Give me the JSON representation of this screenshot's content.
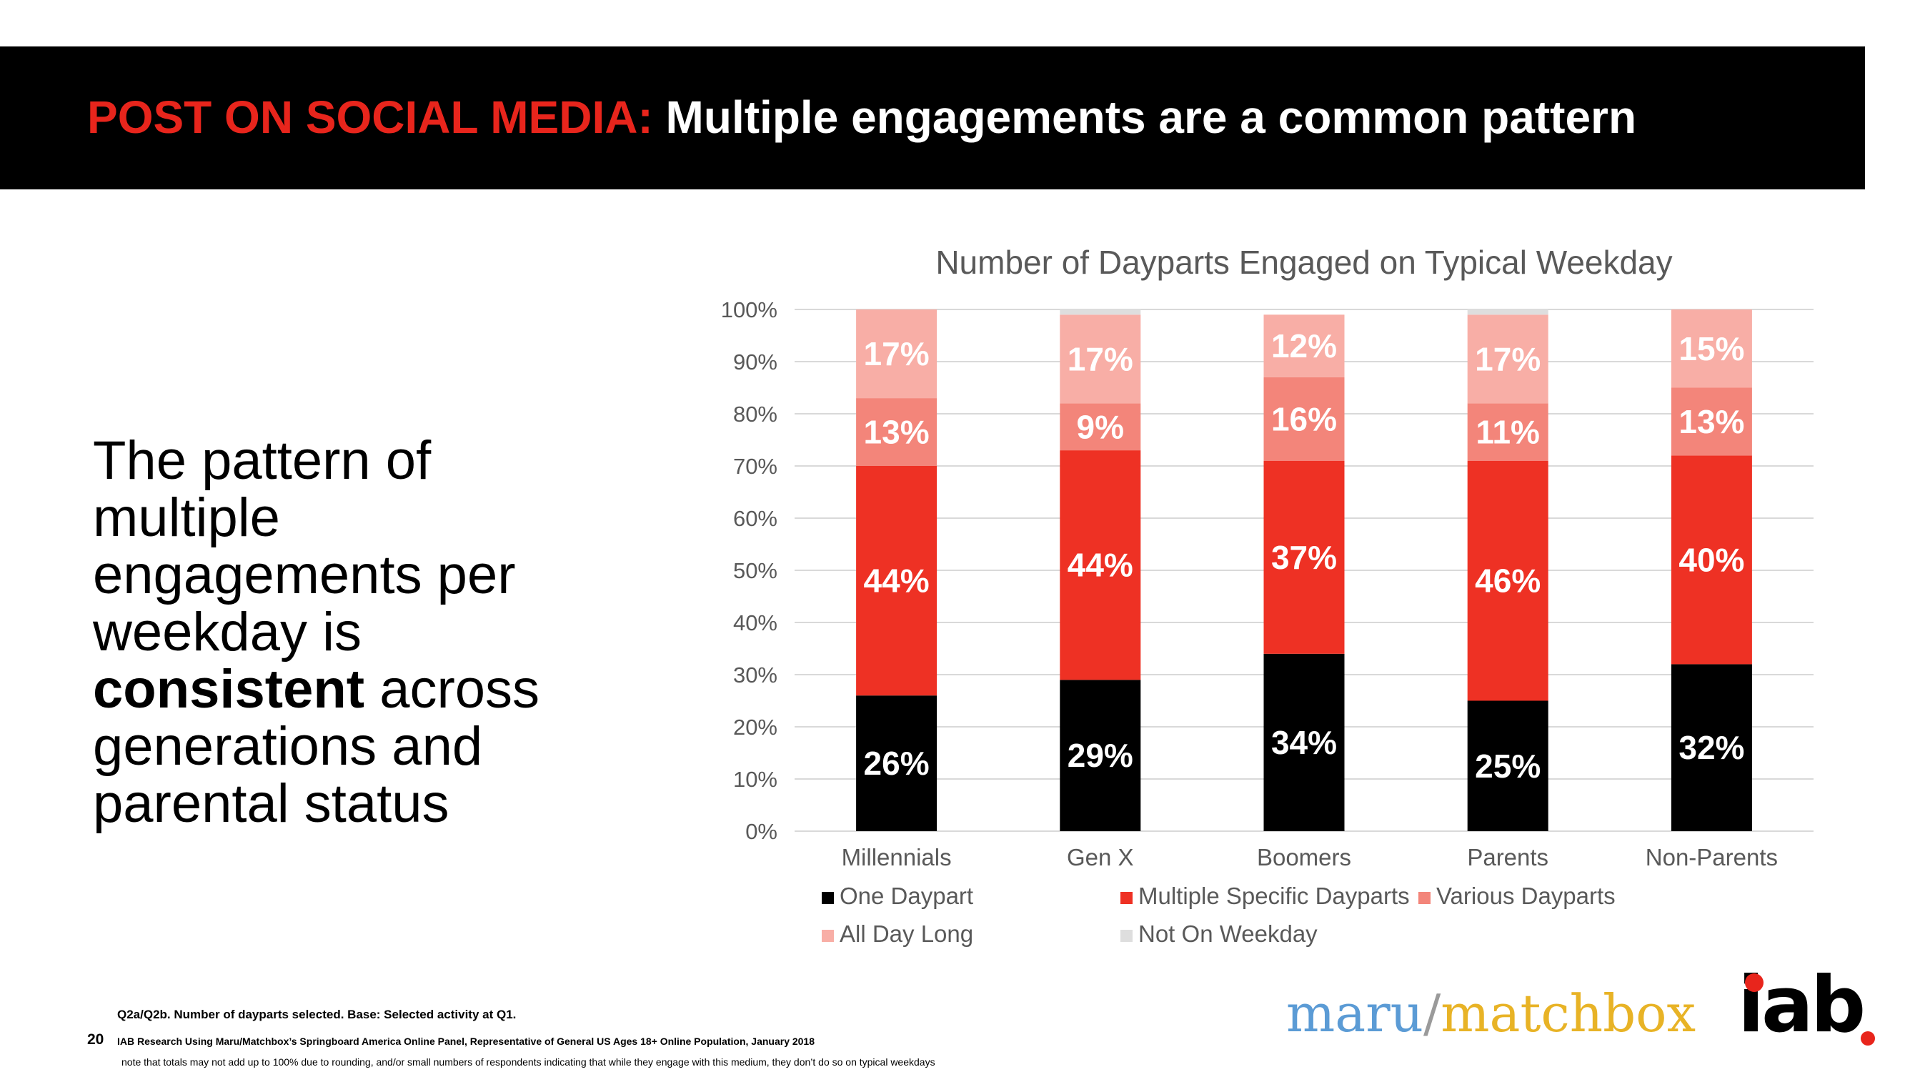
{
  "header": {
    "title_red": "POST ON SOCIAL MEDIA:",
    "title_white": "Multiple engagements are a common pattern"
  },
  "body_text": {
    "part1": "The pattern of multiple engagements per weekday is ",
    "bold": "consistent",
    "part2": " across generations and parental status"
  },
  "chart_data": {
    "type": "bar",
    "stacked": true,
    "title": "Number of Dayparts Engaged on Typical Weekday",
    "categories": [
      "Millennials",
      "Gen X",
      "Boomers",
      "Parents",
      "Non-Parents"
    ],
    "ylim": [
      0,
      100
    ],
    "yticks": [
      "0%",
      "10%",
      "20%",
      "30%",
      "40%",
      "50%",
      "60%",
      "70%",
      "80%",
      "90%",
      "100%"
    ],
    "grid": true,
    "legend_position": "bottom",
    "series": [
      {
        "name": "One Daypart",
        "color": "#000000",
        "values": [
          26,
          29,
          34,
          25,
          32
        ],
        "labels": [
          "26%",
          "29%",
          "34%",
          "25%",
          "32%"
        ]
      },
      {
        "name": "Multiple Specific Dayparts",
        "color": "#ee3124",
        "values": [
          44,
          44,
          37,
          46,
          40
        ],
        "labels": [
          "44%",
          "44%",
          "37%",
          "46%",
          "40%"
        ]
      },
      {
        "name": "Various Dayparts",
        "color": "#f3857a",
        "values": [
          13,
          9,
          16,
          11,
          13
        ],
        "labels": [
          "13%",
          "9%",
          "16%",
          "11%",
          "13%"
        ]
      },
      {
        "name": "All Day Long",
        "color": "#f8aea6",
        "values": [
          17,
          17,
          12,
          17,
          15
        ],
        "labels": [
          "17%",
          "17%",
          "12%",
          "17%",
          "15%"
        ]
      },
      {
        "name": "Not On Weekday",
        "color": "#dedede",
        "values": [
          0,
          1,
          0,
          1,
          0
        ],
        "labels": [
          "",
          "",
          "",
          "",
          ""
        ]
      }
    ]
  },
  "footnotes": {
    "page_number": "20",
    "line1": "Q2a/Q2b. Number of dayparts selected. Base: Selected activity at Q1.",
    "line2": "IAB Research Using Maru/Matchbox’s Springboard America Online Panel, Representative of General US Ages 18+ Online Population, January 2018",
    "line3": "note that totals may not add up to 100% due to rounding, and/or small numbers of respondents indicating that while they engage with this medium, they don’t do so on typical weekdays"
  },
  "logos": {
    "maru": "maru",
    "slash": "/",
    "matchbox": "matchbox",
    "iab": "iab"
  }
}
